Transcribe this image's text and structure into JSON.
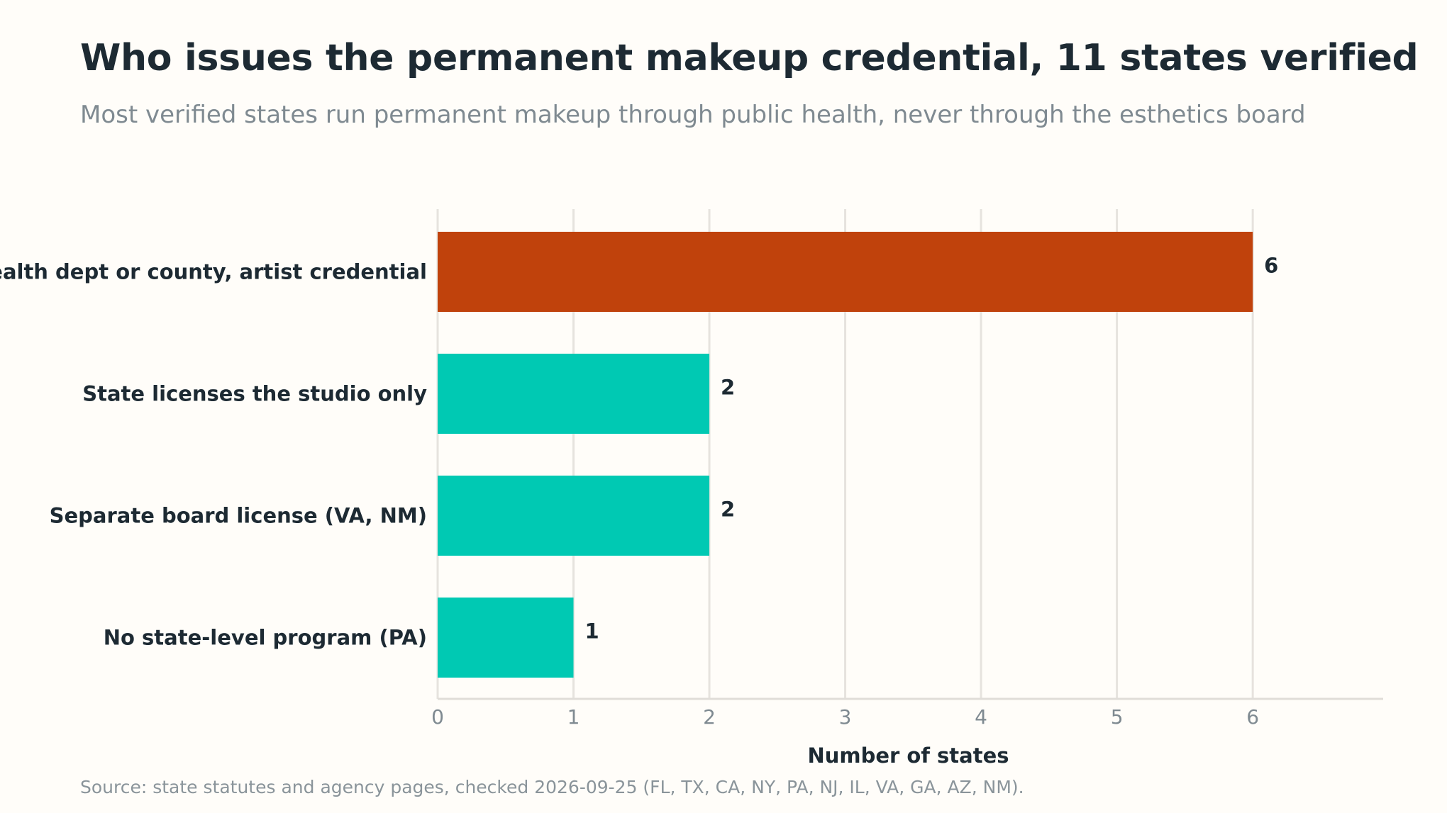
{
  "chart_data": {
    "type": "bar",
    "orientation": "horizontal",
    "title": "Who issues the permanent makeup credential, 11 states verified",
    "subtitle": "Most verified states run permanent makeup through public health, never through the esthetics board",
    "source": "Source: state statutes and agency pages, checked 2026-09-25 (FL, TX, CA, NY, PA, NJ, IL, VA, GA, AZ, NM).",
    "xlabel": "Number of states",
    "ylabel": "",
    "categories": [
      "Health dept or county, artist credential",
      "State licenses the studio only",
      "Separate board license (VA, NM)",
      "No state-level program (PA)"
    ],
    "values": [
      6,
      2,
      2,
      1
    ],
    "xlim": [
      0,
      6.96
    ],
    "xticks": [
      0,
      1,
      2,
      3,
      4,
      5,
      6
    ],
    "grid": "vertical",
    "colors": {
      "highlight": "#c0420c",
      "default": "#00c9b3",
      "grid": "#e6e3de",
      "axis": "#e0ddd8"
    },
    "highlight_index": 0
  }
}
